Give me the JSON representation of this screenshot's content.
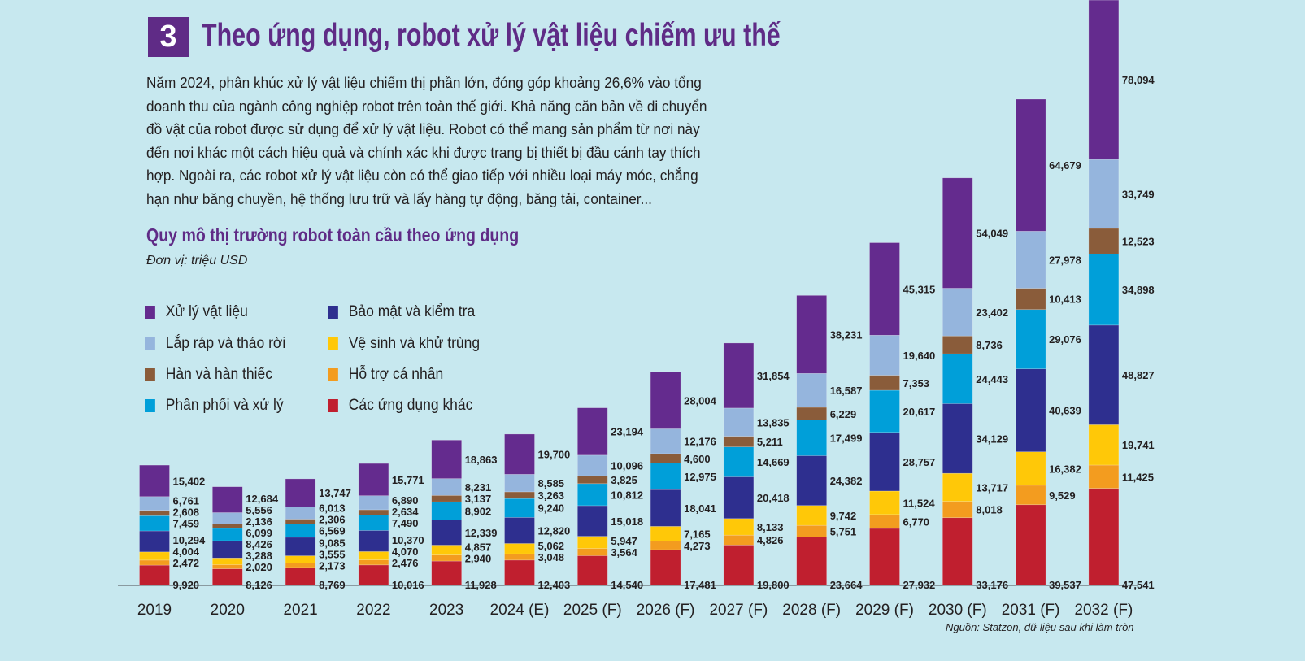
{
  "header": {
    "number": "3",
    "title": "Theo ứng dụng, robot xử lý vật liệu chiếm ưu thế",
    "body_lines": [
      "Năm 2024, phân khúc xử lý vật liệu chiếm thị phần lớn, đóng góp khoảng 26,6% vào tổng",
      "doanh thu của ngành công nghiệp robot trên toàn thế giới. Khả năng căn bản về di chuyển",
      "đồ vật của robot được sử dụng để xử lý vật liệu. Robot có thể mang sản phẩm từ nơi này",
      "đến nơi khác một cách hiệu quả và chính xác khi được trang bị thiết bị đầu cánh tay thích",
      "hợp. Ngoài ra, các robot xử lý vật liệu còn có thể giao tiếp với nhiều loại máy móc, chẳng",
      "hạn như băng chuyền, hệ thống lưu trữ và lấy hàng tự động, băng tải, container..."
    ]
  },
  "chart_data": {
    "type": "bar",
    "stacked": true,
    "title": "Quy mô thị trường robot toàn cầu theo ứng dụng",
    "unit": "Đơn vị: triệu USD",
    "source": "Nguồn: Statzon, dữ liệu sau khi làm tròn",
    "legend_placement": "top-left",
    "grid": false,
    "categories": [
      "2019",
      "2020",
      "2021",
      "2022",
      "2023",
      "2024 (E)",
      "2025 (F)",
      "2026 (F)",
      "2027 (F)",
      "2028 (F)",
      "2029 (F)",
      "2030 (F)",
      "2031 (F)",
      "2032 (F)"
    ],
    "series": [
      {
        "name": "Các ứng dụng khác",
        "color": "#c01f2f",
        "values": [
          9920,
          8126,
          8769,
          10016,
          11928,
          12403,
          14540,
          17481,
          19800,
          23664,
          27932,
          33176,
          39537,
          47541
        ]
      },
      {
        "name": "Hỗ trợ cá nhân",
        "color": "#f39c1f",
        "values": [
          2472,
          2020,
          2173,
          2476,
          2940,
          3048,
          3564,
          4273,
          4826,
          5751,
          6770,
          8018,
          9529,
          11425
        ]
      },
      {
        "name": "Vệ sinh và  khử trùng",
        "color": "#ffc808",
        "values": [
          4004,
          3288,
          3555,
          4070,
          4857,
          5062,
          5947,
          7165,
          8133,
          9742,
          11524,
          13717,
          16382,
          19741
        ]
      },
      {
        "name": "Bảo mật và  kiểm tra",
        "color": "#2e2f8f",
        "values": [
          10294,
          8426,
          9085,
          10370,
          12339,
          12820,
          15018,
          18041,
          20418,
          24382,
          28757,
          34129,
          40639,
          48827
        ]
      },
      {
        "name": "Phân phối và xử lý",
        "color": "#009fd9",
        "values": [
          7459,
          6099,
          6569,
          7490,
          8902,
          9240,
          10812,
          12975,
          14669,
          17499,
          20617,
          24443,
          29076,
          34898
        ]
      },
      {
        "name": "Hàn và hàn thiếc",
        "color": "#8a5c3a",
        "values": [
          2608,
          2136,
          2306,
          2634,
          3137,
          3263,
          3825,
          4600,
          5211,
          6229,
          7353,
          8736,
          10413,
          12523
        ]
      },
      {
        "name": "Lắp ráp và tháo rời",
        "color": "#95b5dd",
        "values": [
          6761,
          5556,
          6013,
          6890,
          8231,
          8585,
          10096,
          12176,
          13835,
          16587,
          19640,
          23402,
          27978,
          33749
        ]
      },
      {
        "name": "Xử lý vật liệu",
        "color": "#642b8e",
        "values": [
          15402,
          12684,
          13747,
          15771,
          18863,
          19700,
          23194,
          28004,
          31854,
          38231,
          45315,
          54049,
          64679,
          78094
        ]
      }
    ]
  }
}
